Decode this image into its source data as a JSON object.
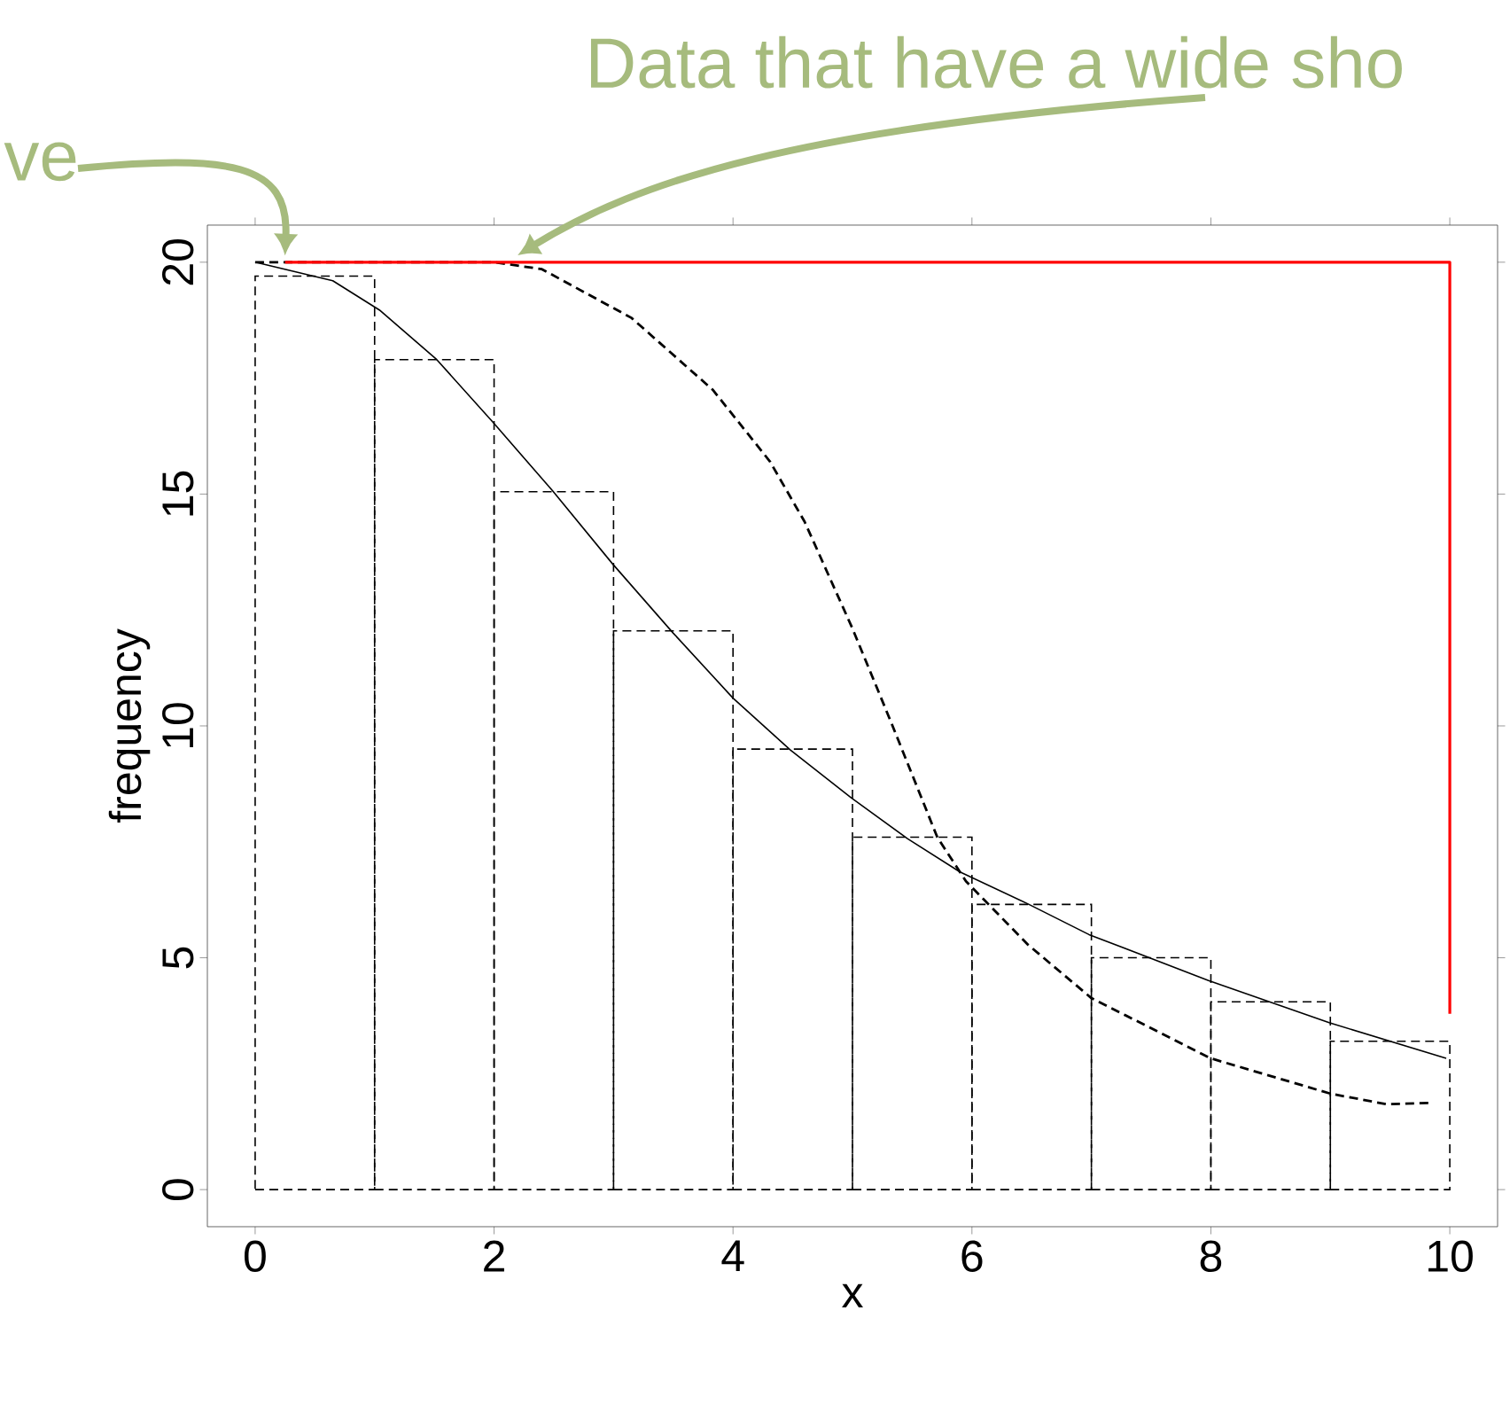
{
  "chart_data": {
    "type": "histogram",
    "xlabel": "x",
    "ylabel": "frequency",
    "color": "#000000",
    "line_style": "dashed",
    "bins": [
      0,
      1,
      2,
      3,
      4,
      5,
      6,
      7,
      8,
      9,
      10
    ],
    "values": [
      19.7,
      17.9,
      15.05,
      12.05,
      9.5,
      7.6,
      6.15,
      5.0,
      4.05,
      3.2
    ],
    "series": [
      {
        "type": "line",
        "color": "#000000",
        "line_style": "solid",
        "x": [
          0,
          0.65,
          1.04,
          1.52,
          1.99,
          2.49,
          2.99,
          3.5,
          4.0,
          4.48,
          4.99,
          5.46,
          5.9,
          6.47,
          6.98,
          7.98,
          8.99,
          9.97
        ],
        "values": [
          20,
          19.6,
          18.97,
          17.9,
          16.55,
          15.07,
          13.5,
          12.0,
          10.6,
          9.48,
          8.45,
          7.57,
          6.85,
          6.16,
          5.5,
          4.51,
          3.6,
          2.83
        ]
      },
      {
        "type": "line",
        "color": "#000000",
        "line_style": "dashed",
        "x": [
          0,
          1,
          2,
          2.4,
          3.15,
          3.83,
          4.31,
          4.6,
          5.0,
          5.32,
          5.71,
          5.95,
          6.47,
          7.0,
          8.0,
          9.0,
          9.47,
          9.83
        ],
        "values": [
          20,
          20,
          20,
          19.85,
          18.8,
          17.25,
          15.7,
          14.4,
          12.1,
          10.1,
          7.6,
          6.65,
          5.28,
          4.13,
          2.83,
          2.07,
          1.84,
          1.87
        ]
      },
      {
        "type": "line",
        "color": "#ff0000",
        "line_style": "solid",
        "x": [
          0.25,
          10,
          10
        ],
        "values": [
          20,
          20,
          3.79
        ]
      }
    ],
    "xlim": [
      -0.4,
      10.4
    ],
    "ylim": [
      -0.8,
      20.8
    ],
    "xticks": [
      0,
      2,
      4,
      6,
      8,
      10
    ],
    "yticks": [
      0,
      5,
      10,
      15,
      20
    ],
    "grid": false,
    "annotations": [
      "ve",
      {
        "text": "Data that have a wide sho",
        "x": 2.2,
        "y": 20
      }
    ]
  }
}
